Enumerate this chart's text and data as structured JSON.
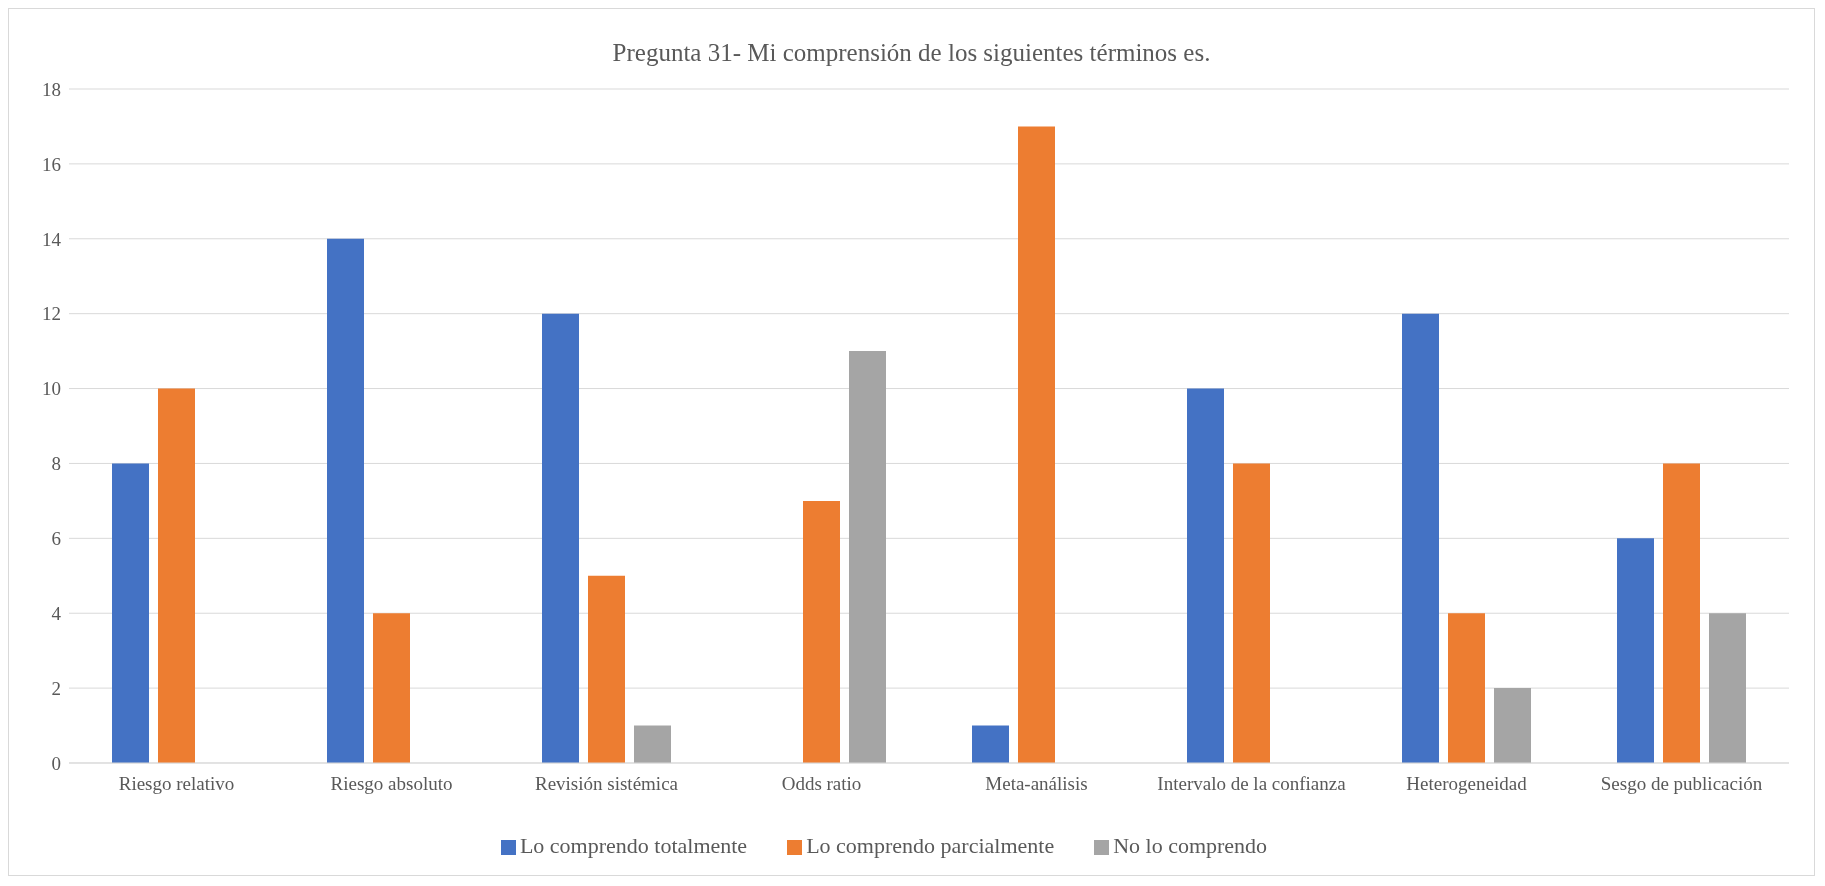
{
  "chart_data": {
    "type": "bar",
    "title": "Pregunta 31- Mi comprensión de los siguientes términos es.",
    "categories": [
      "Riesgo relativo",
      "Riesgo absoluto",
      "Revisión sistémica",
      "Odds ratio",
      "Meta-análisis",
      "Intervalo de la confianza",
      "Heterogeneidad",
      "Sesgo de publicación"
    ],
    "series": [
      {
        "name": "Lo comprendo totalmente",
        "color": "#4472c4",
        "values": [
          8,
          14,
          12,
          null,
          1,
          10,
          12,
          6
        ]
      },
      {
        "name": "Lo comprendo parcialmente",
        "color": "#ed7d31",
        "values": [
          10,
          4,
          5,
          7,
          17,
          8,
          4,
          8
        ]
      },
      {
        "name": "No lo comprendo",
        "color": "#a5a5a5",
        "values": [
          null,
          null,
          1,
          11,
          null,
          null,
          2,
          4
        ]
      }
    ],
    "ylim": [
      0,
      18
    ],
    "yticks": [
      0,
      2,
      4,
      6,
      8,
      10,
      12,
      14,
      16,
      18
    ],
    "grid": "y",
    "legend": "bottom"
  }
}
